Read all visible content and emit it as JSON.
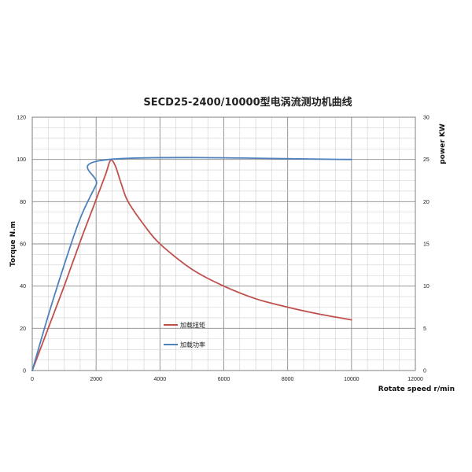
{
  "chart_data": {
    "type": "line",
    "title": "SECD25-2400/10000型电涡流测功机曲线",
    "xlabel": "Rotate speed r/min",
    "ylabel_left": "Torque N.m",
    "ylabel_right": "power KW",
    "xlim": [
      0,
      12000
    ],
    "ylim_left": [
      0,
      120
    ],
    "ylim_right": [
      0,
      30
    ],
    "x_ticks": [
      "0",
      "2000",
      "4000",
      "6000",
      "8000",
      "10000",
      "12000"
    ],
    "y_ticks_left": [
      "0",
      "20",
      "40",
      "60",
      "80",
      "100",
      "120"
    ],
    "y_ticks_right": [
      "0",
      "5",
      "10",
      "15",
      "20",
      "25",
      "30"
    ],
    "grid": true,
    "legend_position": "center-left",
    "series": [
      {
        "name": "加载扭矩",
        "axis": "left",
        "color": "#c0504d",
        "x": [
          0,
          500,
          1000,
          1500,
          2000,
          2300,
          2450,
          2600,
          2800,
          3000,
          3500,
          4000,
          5000,
          6000,
          7000,
          8000,
          9000,
          10000
        ],
        "y": [
          0,
          20,
          40,
          61,
          81,
          93,
          99.5,
          97,
          88,
          80,
          69,
          60,
          48,
          40,
          34,
          30,
          26.7,
          24
        ]
      },
      {
        "name": "加载功率",
        "axis": "right",
        "color": "#4f81bd",
        "x": [
          0,
          500,
          1000,
          1500,
          2000,
          2400,
          10000
        ],
        "y": [
          0,
          6.5,
          12.5,
          18,
          22,
          25,
          25
        ]
      }
    ]
  }
}
